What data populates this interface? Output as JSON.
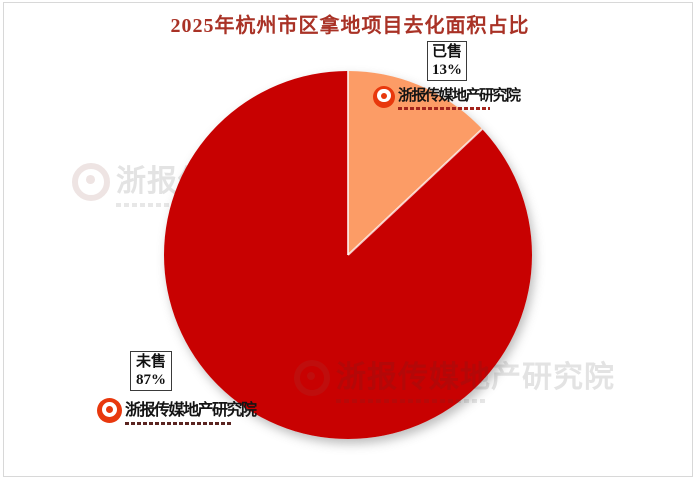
{
  "title": "2025年杭州市区拿地项目去化面积占比",
  "chart_data": {
    "type": "pie",
    "title": "2025年杭州市区拿地项目去化面积占比",
    "unit": "percent",
    "start_angle_deg": 0,
    "direction": "clockwise",
    "legend_position": "none",
    "data_labels": "boxed, two lines (name + percent)",
    "slices": [
      {
        "label": "已售",
        "value": 13,
        "display": "13%",
        "color": "#FC9C66"
      },
      {
        "label": "未售",
        "value": 87,
        "display": "87%",
        "color": "#C80101"
      }
    ]
  },
  "brand": {
    "name": "浙报传媒地产研究院"
  },
  "colors": {
    "title_red": "#A93226",
    "pie_red": "#C80101",
    "pie_orange": "#FC9C66",
    "logo_red": "#E8380D",
    "frame_gray": "#D8D8D8",
    "label_border": "#3A3A3A",
    "watermark_gray": "#BFBFBF"
  }
}
